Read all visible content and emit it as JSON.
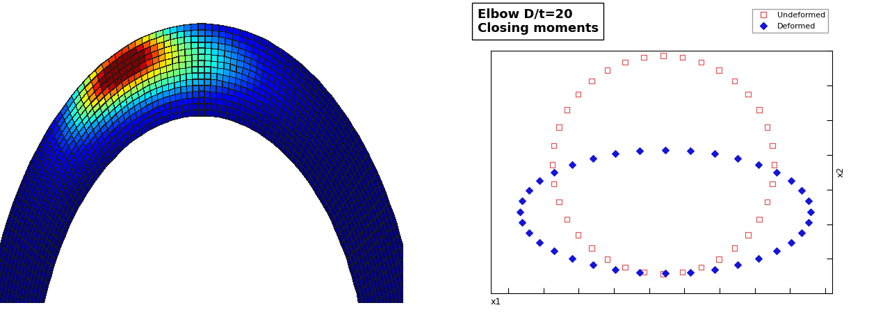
{
  "chart_data": {
    "type": "scatter",
    "title": "Elbow D/t=20\nClosing moments",
    "x_label": "x1",
    "y_label": "x2",
    "xlim": [
      -4.5,
      5.2
    ],
    "ylim": [
      0,
      7.0
    ],
    "xticks": [
      -4,
      -3,
      -2,
      -1,
      0,
      1,
      2,
      3,
      4,
      5
    ],
    "yticks": [
      0,
      1,
      2,
      3,
      4,
      5,
      6,
      7
    ],
    "tick_labels": false,
    "legend": "upper right",
    "grid": false,
    "series": [
      {
        "name": "Undeformed",
        "color": "#e05a5a",
        "marker": "square",
        "x": [
          3.55,
          3.5,
          3.36,
          3.13,
          2.81,
          2.43,
          1.98,
          1.48,
          0.95,
          0.4,
          -0.15,
          -0.68,
          -1.18,
          -1.63,
          -2.01,
          -2.33,
          -2.56,
          -2.7,
          -2.75,
          -2.7,
          -2.56,
          -2.33,
          -2.01,
          -1.63,
          -1.18,
          -0.68,
          -0.15,
          0.4,
          0.95,
          1.48,
          1.98,
          2.43,
          2.81,
          3.13,
          3.36,
          3.5
        ],
        "values": [
          3.72,
          4.27,
          4.8,
          5.3,
          5.75,
          6.13,
          6.45,
          6.68,
          6.82,
          6.87,
          6.82,
          6.68,
          6.45,
          6.13,
          5.75,
          5.3,
          4.8,
          4.27,
          3.72,
          3.17,
          2.64,
          2.14,
          1.69,
          1.31,
          0.99,
          0.76,
          0.62,
          0.57,
          0.62,
          0.76,
          0.99,
          1.31,
          1.69,
          2.14,
          2.64,
          3.17
        ]
      },
      {
        "name": "Deformed",
        "color": "#1515d8",
        "marker": "diamond",
        "x": [
          4.58,
          4.52,
          4.33,
          4.03,
          3.62,
          3.11,
          2.52,
          1.87,
          1.18,
          0.46,
          -0.26,
          -0.95,
          -1.6,
          -2.19,
          -2.7,
          -3.11,
          -3.41,
          -3.6,
          -3.66,
          -3.6,
          -3.41,
          -3.11,
          -2.7,
          -2.19,
          -1.6,
          -0.95,
          -0.26,
          0.46,
          1.18,
          1.87,
          2.52,
          3.11,
          3.62,
          4.03,
          4.33,
          4.52
        ],
        "values": [
          2.36,
          2.67,
          2.97,
          3.25,
          3.5,
          3.72,
          3.9,
          4.03,
          4.11,
          4.14,
          4.11,
          4.03,
          3.9,
          3.72,
          3.5,
          3.25,
          2.97,
          2.67,
          2.36,
          2.05,
          1.75,
          1.47,
          1.22,
          1.0,
          0.82,
          0.69,
          0.61,
          0.58,
          0.61,
          0.69,
          0.82,
          1.0,
          1.22,
          1.47,
          1.75,
          2.05
        ]
      }
    ]
  }
}
